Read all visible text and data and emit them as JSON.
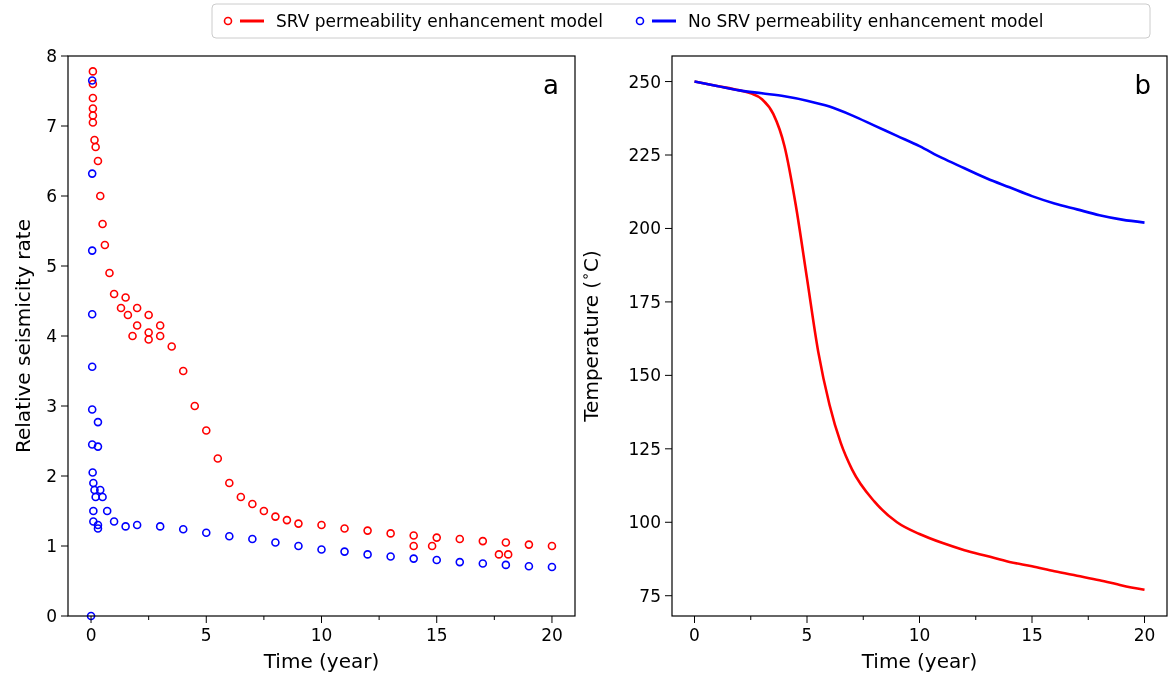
{
  "chart_data": [
    {
      "type": "scatter",
      "xlabel": "Time (year)",
      "ylabel": "Relative seismicity rate",
      "annotations": [
        "a"
      ],
      "legend": "top",
      "marker": "circle",
      "xlim": [
        -1,
        21
      ],
      "ylim": [
        0,
        8
      ],
      "xticks": [
        0,
        {
          "value": 2.5,
          "label": null
        },
        5,
        {
          "value": 7.5,
          "label": null
        },
        10,
        {
          "value": 12.5,
          "label": null
        },
        15,
        {
          "value": 17.5,
          "label": null
        },
        20
      ],
      "yticks": [
        0,
        1,
        2,
        3,
        4,
        5,
        6,
        7,
        8
      ],
      "series": [
        {
          "name": "SRV permeability enhancement model",
          "color": "#ff0000",
          "x": [
            0.08,
            0.08,
            0.08,
            0.08,
            0.08,
            0.08,
            0.15,
            0.2,
            0.3,
            0.4,
            0.5,
            0.6,
            0.8,
            1.0,
            1.3,
            1.5,
            1.6,
            1.8,
            2.0,
            2.0,
            2.5,
            2.5,
            2.5,
            3.0,
            3.0,
            3.5,
            4.0,
            4.5,
            5.0,
            5.5,
            6.0,
            6.5,
            7.0,
            7.5,
            8.0,
            8.5,
            9.0,
            10.0,
            11.0,
            12.0,
            13.0,
            14.0,
            14.0,
            14.8,
            15.0,
            16.0,
            17.0,
            17.7,
            18.0,
            18.1,
            19.0,
            20.0
          ],
          "values": [
            7.78,
            7.6,
            7.4,
            7.25,
            7.15,
            7.05,
            6.8,
            6.7,
            6.5,
            6.0,
            5.6,
            5.3,
            4.9,
            4.6,
            4.4,
            4.55,
            4.3,
            4.0,
            4.15,
            4.4,
            4.05,
            4.3,
            3.95,
            4.0,
            4.15,
            3.85,
            3.5,
            3.0,
            2.65,
            2.25,
            1.9,
            1.7,
            1.6,
            1.5,
            1.42,
            1.37,
            1.32,
            1.3,
            1.25,
            1.22,
            1.18,
            1.15,
            1.0,
            1.0,
            1.12,
            1.1,
            1.07,
            0.88,
            1.05,
            0.88,
            1.02,
            1.0
          ]
        },
        {
          "name": "No SRV permeability enhancement model",
          "color": "#0000ff",
          "x": [
            0.05,
            0.05,
            0.05,
            0.05,
            0.05,
            0.05,
            0.05,
            0.07,
            0.3,
            0.3,
            0.0,
            0.1,
            0.15,
            0.1,
            0.1,
            0.3,
            0.3,
            0.2,
            0.4,
            0.5,
            0.7,
            1.0,
            1.5,
            2.0,
            3.0,
            4.0,
            5.0,
            6.0,
            7.0,
            8.0,
            9.0,
            10.0,
            11.0,
            12.0,
            13.0,
            14.0,
            15.0,
            16.0,
            17.0,
            18.0,
            19.0,
            20.0
          ],
          "values": [
            7.65,
            6.32,
            5.22,
            4.31,
            3.56,
            2.95,
            2.45,
            2.05,
            2.77,
            2.42,
            0.0,
            1.9,
            1.8,
            1.5,
            1.35,
            1.3,
            1.25,
            1.7,
            1.8,
            1.7,
            1.5,
            1.35,
            1.28,
            1.3,
            1.28,
            1.24,
            1.19,
            1.14,
            1.1,
            1.05,
            1.0,
            0.95,
            0.92,
            0.88,
            0.85,
            0.82,
            0.8,
            0.77,
            0.75,
            0.73,
            0.71,
            0.7
          ]
        }
      ]
    },
    {
      "type": "line",
      "xlabel": "Time (year)",
      "ylabel": "Temperature ($^{∘}$C)",
      "annotations": [
        "b"
      ],
      "xlim": [
        -1,
        21
      ],
      "ylim": [
        68.1,
        258.7
      ],
      "xticks": [
        0,
        {
          "value": 2.5,
          "label": null
        },
        5,
        {
          "value": 7.5,
          "label": null
        },
        10,
        {
          "value": 12.5,
          "label": null
        },
        15,
        {
          "value": 17.5,
          "label": null
        },
        20
      ],
      "yticks": [
        75,
        100,
        125,
        150,
        175,
        200,
        225,
        250
      ],
      "series": [
        {
          "color": "#ff0000",
          "x": [
            0,
            1,
            2,
            2.5,
            3,
            3.5,
            4,
            4.5,
            5,
            5.5,
            6,
            6.5,
            7,
            8,
            9,
            10,
            11,
            12,
            13,
            14,
            15,
            16,
            17,
            18,
            19,
            20
          ],
          "values": [
            250,
            248.5,
            247,
            246,
            244,
            239,
            228,
            208,
            183,
            158,
            140,
            127,
            118,
            107,
            100,
            96,
            93,
            90.5,
            88.5,
            86.5,
            85,
            83.3,
            81.8,
            80.3,
            78.5,
            77
          ]
        },
        {
          "color": "#0000ff",
          "x": [
            0,
            1,
            2,
            3,
            4,
            5,
            6,
            7,
            8,
            9,
            10,
            11,
            12,
            13,
            14,
            15,
            16,
            17,
            18,
            19,
            20
          ],
          "values": [
            250,
            248.5,
            247,
            246,
            245,
            243.5,
            241.5,
            238.5,
            235,
            231.5,
            228,
            224,
            220.5,
            217,
            214,
            211,
            208.5,
            206.5,
            204.5,
            203,
            202
          ]
        }
      ]
    }
  ]
}
